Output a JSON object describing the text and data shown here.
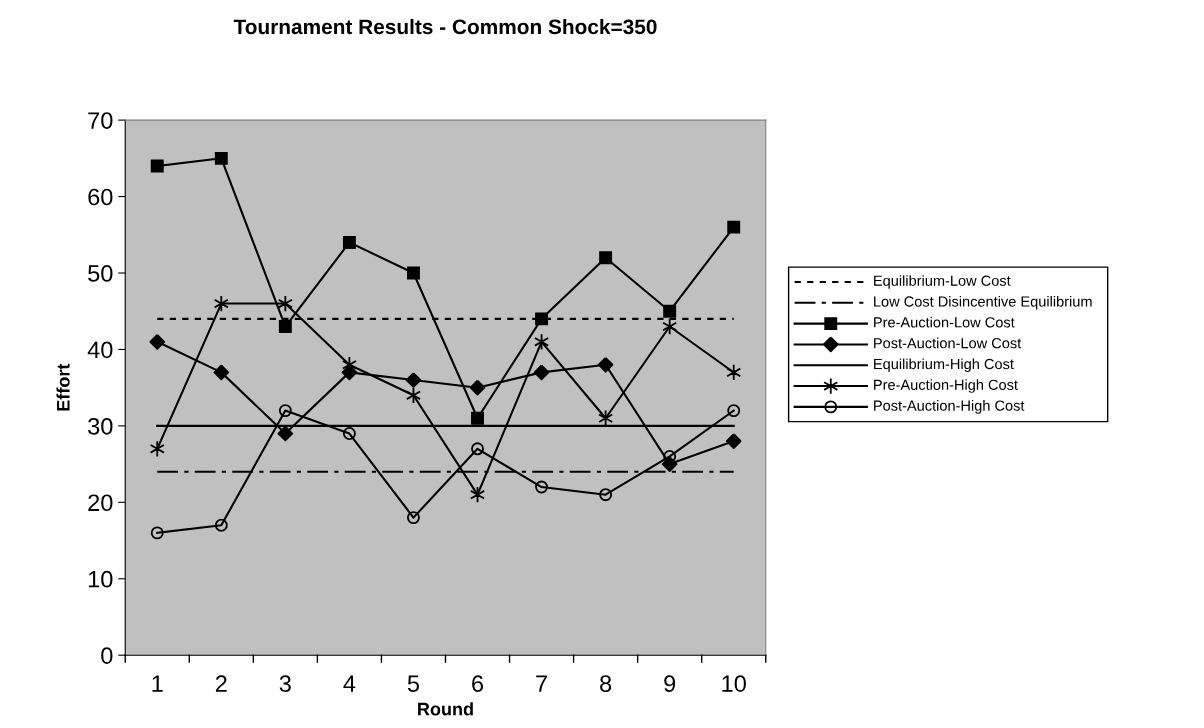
{
  "chart_data": {
    "type": "line",
    "title": "Tournament Results - Common Shock=350",
    "xlabel": "Round",
    "ylabel": "Effort",
    "categories": [
      "1",
      "2",
      "3",
      "4",
      "5",
      "6",
      "7",
      "8",
      "9",
      "10"
    ],
    "series": [
      {
        "name": "Equilibrium-Low Cost",
        "color": "#000000",
        "line_style": "dotted",
        "marker": "none",
        "values": [
          44,
          44,
          44,
          44,
          44,
          44,
          44,
          44,
          44,
          44
        ]
      },
      {
        "name": "Low Cost Disincentive Equilibrium",
        "color": "#000000",
        "line_style": "dashed",
        "marker": "none",
        "values": [
          24,
          24,
          24,
          24,
          24,
          24,
          24,
          24,
          24,
          24
        ]
      },
      {
        "name": "Pre-Auction-Low Cost",
        "color": "#000000",
        "line_style": "solid",
        "marker": "square",
        "values": [
          64,
          65,
          43,
          54,
          50,
          31,
          44,
          52,
          45,
          56
        ]
      },
      {
        "name": "Post-Auction-Low Cost",
        "color": "#000000",
        "line_style": "solid",
        "marker": "diamond",
        "values": [
          41,
          37,
          29,
          37,
          36,
          35,
          37,
          38,
          25,
          28
        ]
      },
      {
        "name": "Equilibrium-High Cost",
        "color": "#000000",
        "line_style": "solid",
        "marker": "none",
        "values": [
          30,
          30,
          30,
          30,
          30,
          30,
          30,
          30,
          30,
          30
        ]
      },
      {
        "name": "Pre-Auction-High Cost",
        "color": "#000000",
        "line_style": "solid",
        "marker": "cross",
        "values": [
          27,
          46,
          46,
          38,
          34,
          21,
          41,
          31,
          43,
          37
        ]
      },
      {
        "name": "Post-Auction-High Cost",
        "color": "#000000",
        "line_style": "solid",
        "marker": "circle",
        "values": [
          16,
          17,
          32,
          29,
          18,
          27,
          22,
          21,
          26,
          32
        ]
      }
    ],
    "ylim": [
      0,
      70
    ],
    "yticks": [
      0,
      10,
      20,
      30,
      40,
      50,
      60,
      70
    ],
    "grid": false,
    "legend": "right"
  }
}
